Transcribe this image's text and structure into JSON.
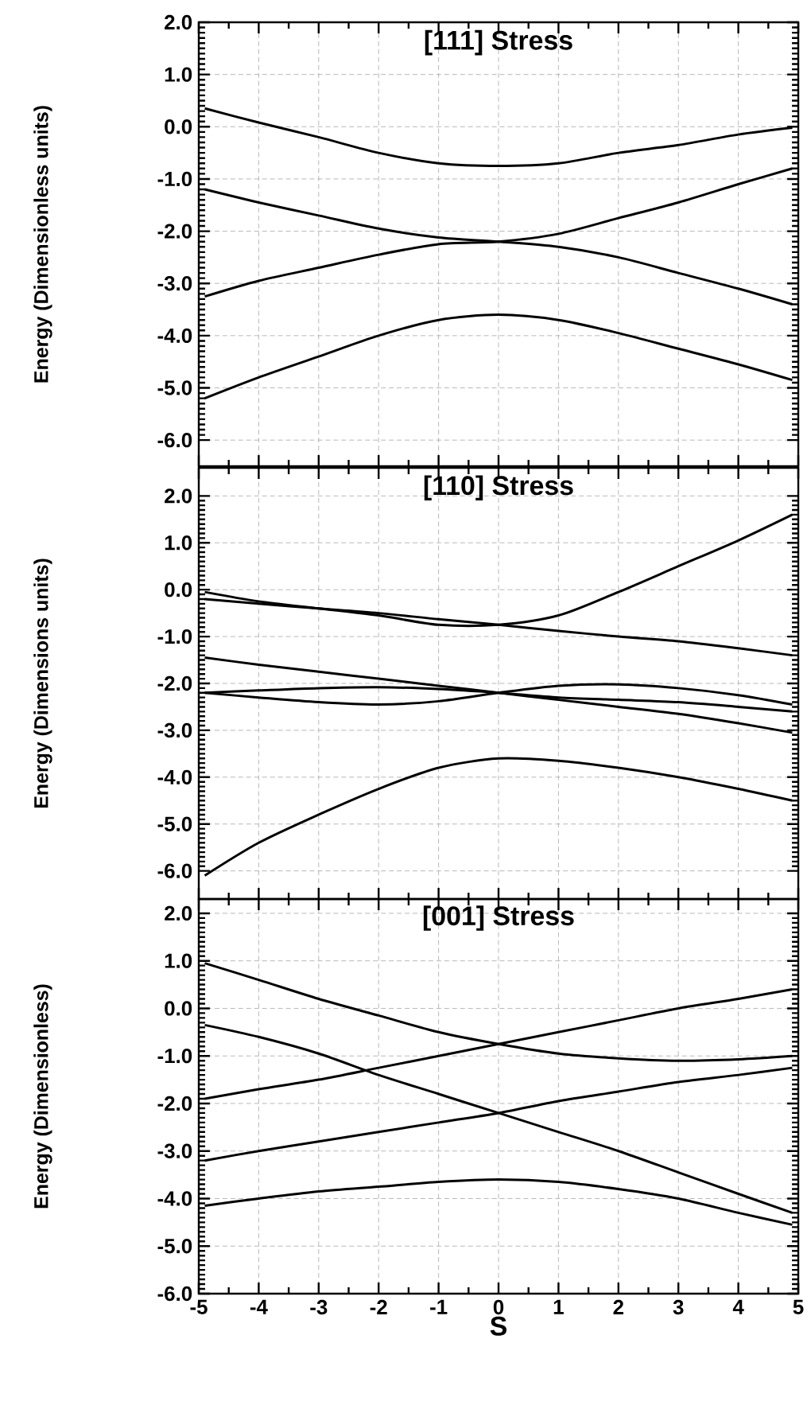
{
  "chart_data": [
    {
      "type": "line",
      "title": "[111] Stress",
      "ylabel": "Energy (Dimensionless units)",
      "grid": true,
      "tick_labels": "y",
      "xlim": [
        -5,
        5
      ],
      "xticks": [
        -5,
        -4,
        -3,
        -2,
        -1,
        0,
        1,
        2,
        3,
        4,
        5
      ],
      "ylim": [
        -6.5,
        2.0
      ],
      "yticks": [
        {
          "value": -6,
          "label": "-6.0"
        },
        {
          "value": -5,
          "label": "-5.0"
        },
        {
          "value": -4,
          "label": "-4.0"
        },
        {
          "value": -3,
          "label": "-3.0"
        },
        {
          "value": -2,
          "label": "-2.0"
        },
        {
          "value": -1,
          "label": "-1.0"
        },
        {
          "value": 0,
          "label": "0.0"
        },
        {
          "value": 1,
          "label": "1.0"
        },
        {
          "value": 2,
          "label": "2.0"
        }
      ],
      "x": [
        -4.9,
        -4,
        -3,
        -2,
        -1,
        0,
        1,
        2,
        3,
        4,
        4.9
      ],
      "series": [
        {
          "color": "#000000",
          "values": [
            0.35,
            0.08,
            -0.2,
            -0.5,
            -0.7,
            -0.75,
            -0.7,
            -0.5,
            -0.35,
            -0.15,
            -0.02
          ]
        },
        {
          "color": "#000000",
          "values": [
            -1.2,
            -1.45,
            -1.7,
            -1.95,
            -2.12,
            -2.2,
            -2.3,
            -2.5,
            -2.8,
            -3.1,
            -3.4
          ]
        },
        {
          "color": "#000000",
          "values": [
            -3.25,
            -2.95,
            -2.7,
            -2.45,
            -2.25,
            -2.2,
            -2.05,
            -1.75,
            -1.45,
            -1.1,
            -0.8
          ]
        },
        {
          "color": "#000000",
          "values": [
            -5.2,
            -4.8,
            -4.4,
            -4.0,
            -3.7,
            -3.6,
            -3.7,
            -3.95,
            -4.25,
            -4.55,
            -4.85
          ]
        }
      ]
    },
    {
      "type": "line",
      "title": "[110] Stress",
      "ylabel": "Energy (Dimensions units)",
      "grid": true,
      "tick_labels": "y",
      "xlim": [
        -5,
        5
      ],
      "xticks": [
        -5,
        -4,
        -3,
        -2,
        -1,
        0,
        1,
        2,
        3,
        4,
        5
      ],
      "ylim": [
        -6.6,
        2.6
      ],
      "yticks": [
        {
          "value": -6,
          "label": "-6.0"
        },
        {
          "value": -5,
          "label": "-5.0"
        },
        {
          "value": -4,
          "label": "-4.0"
        },
        {
          "value": -3,
          "label": "-3.0"
        },
        {
          "value": -2,
          "label": "-2.0"
        },
        {
          "value": -1,
          "label": "-1.0"
        },
        {
          "value": 0,
          "label": "0.0"
        },
        {
          "value": 1,
          "label": "1.0"
        },
        {
          "value": 2,
          "label": "2.0"
        }
      ],
      "x": [
        -4.9,
        -4,
        -3,
        -2,
        -1,
        0,
        1,
        2,
        3,
        4,
        4.9
      ],
      "series": [
        {
          "color": "#000000",
          "values": [
            -0.05,
            -0.25,
            -0.4,
            -0.55,
            -0.75,
            -0.75,
            -0.55,
            -0.05,
            0.5,
            1.05,
            1.6
          ]
        },
        {
          "color": "#000000",
          "values": [
            -0.2,
            -0.3,
            -0.4,
            -0.5,
            -0.63,
            -0.75,
            -0.88,
            -1.0,
            -1.1,
            -1.25,
            -1.4
          ]
        },
        {
          "color": "#000000",
          "values": [
            -1.45,
            -1.6,
            -1.75,
            -1.9,
            -2.05,
            -2.2,
            -2.35,
            -2.5,
            -2.65,
            -2.85,
            -3.05
          ]
        },
        {
          "color": "#000000",
          "values": [
            -2.2,
            -2.15,
            -2.1,
            -2.08,
            -2.12,
            -2.2,
            -2.3,
            -2.35,
            -2.4,
            -2.5,
            -2.6
          ]
        },
        {
          "color": "#000000",
          "values": [
            -2.2,
            -2.3,
            -2.4,
            -2.45,
            -2.38,
            -2.2,
            -2.05,
            -2.02,
            -2.1,
            -2.25,
            -2.45
          ]
        },
        {
          "color": "#000000",
          "values": [
            -6.1,
            -5.4,
            -4.8,
            -4.25,
            -3.8,
            -3.6,
            -3.65,
            -3.8,
            -4.0,
            -4.25,
            -4.5
          ]
        }
      ]
    },
    {
      "type": "line",
      "title": "[001] Stress",
      "ylabel": "Energy (Dimensionless)",
      "xlabel": "S",
      "grid": true,
      "xlim": [
        -5,
        5
      ],
      "xticks": [
        -5,
        -4,
        -3,
        -2,
        -1,
        0,
        1,
        2,
        3,
        4,
        5
      ],
      "ylim": [
        -6.0,
        2.3
      ],
      "yticks": [
        {
          "value": -6,
          "label": "-6.0"
        },
        {
          "value": -5,
          "label": "-5.0"
        },
        {
          "value": -4,
          "label": "-4.0"
        },
        {
          "value": -3,
          "label": "-3.0"
        },
        {
          "value": -2,
          "label": "-2.0"
        },
        {
          "value": -1,
          "label": "-1.0"
        },
        {
          "value": 0,
          "label": "0.0"
        },
        {
          "value": 1,
          "label": "1.0"
        },
        {
          "value": 2,
          "label": "2.0"
        }
      ],
      "x": [
        -4.9,
        -4,
        -3,
        -2,
        -1,
        0,
        1,
        2,
        3,
        4,
        4.9
      ],
      "series": [
        {
          "color": "#000000",
          "values": [
            0.95,
            0.6,
            0.2,
            -0.15,
            -0.5,
            -0.75,
            -0.95,
            -1.05,
            -1.1,
            -1.07,
            -1.0
          ]
        },
        {
          "color": "#000000",
          "values": [
            -0.35,
            -0.6,
            -0.95,
            -1.4,
            -1.8,
            -2.2,
            -2.6,
            -3.0,
            -3.45,
            -3.9,
            -4.3
          ]
        },
        {
          "color": "#000000",
          "values": [
            -1.9,
            -1.7,
            -1.5,
            -1.25,
            -1.0,
            -0.75,
            -0.5,
            -0.25,
            0.0,
            0.2,
            0.4
          ]
        },
        {
          "color": "#000000",
          "values": [
            -3.2,
            -3.0,
            -2.8,
            -2.6,
            -2.4,
            -2.2,
            -1.95,
            -1.75,
            -1.55,
            -1.4,
            -1.25
          ]
        },
        {
          "color": "#000000",
          "values": [
            -4.15,
            -4.0,
            -3.85,
            -3.75,
            -3.65,
            -3.6,
            -3.65,
            -3.8,
            -4.0,
            -4.3,
            -4.55
          ]
        }
      ]
    }
  ]
}
